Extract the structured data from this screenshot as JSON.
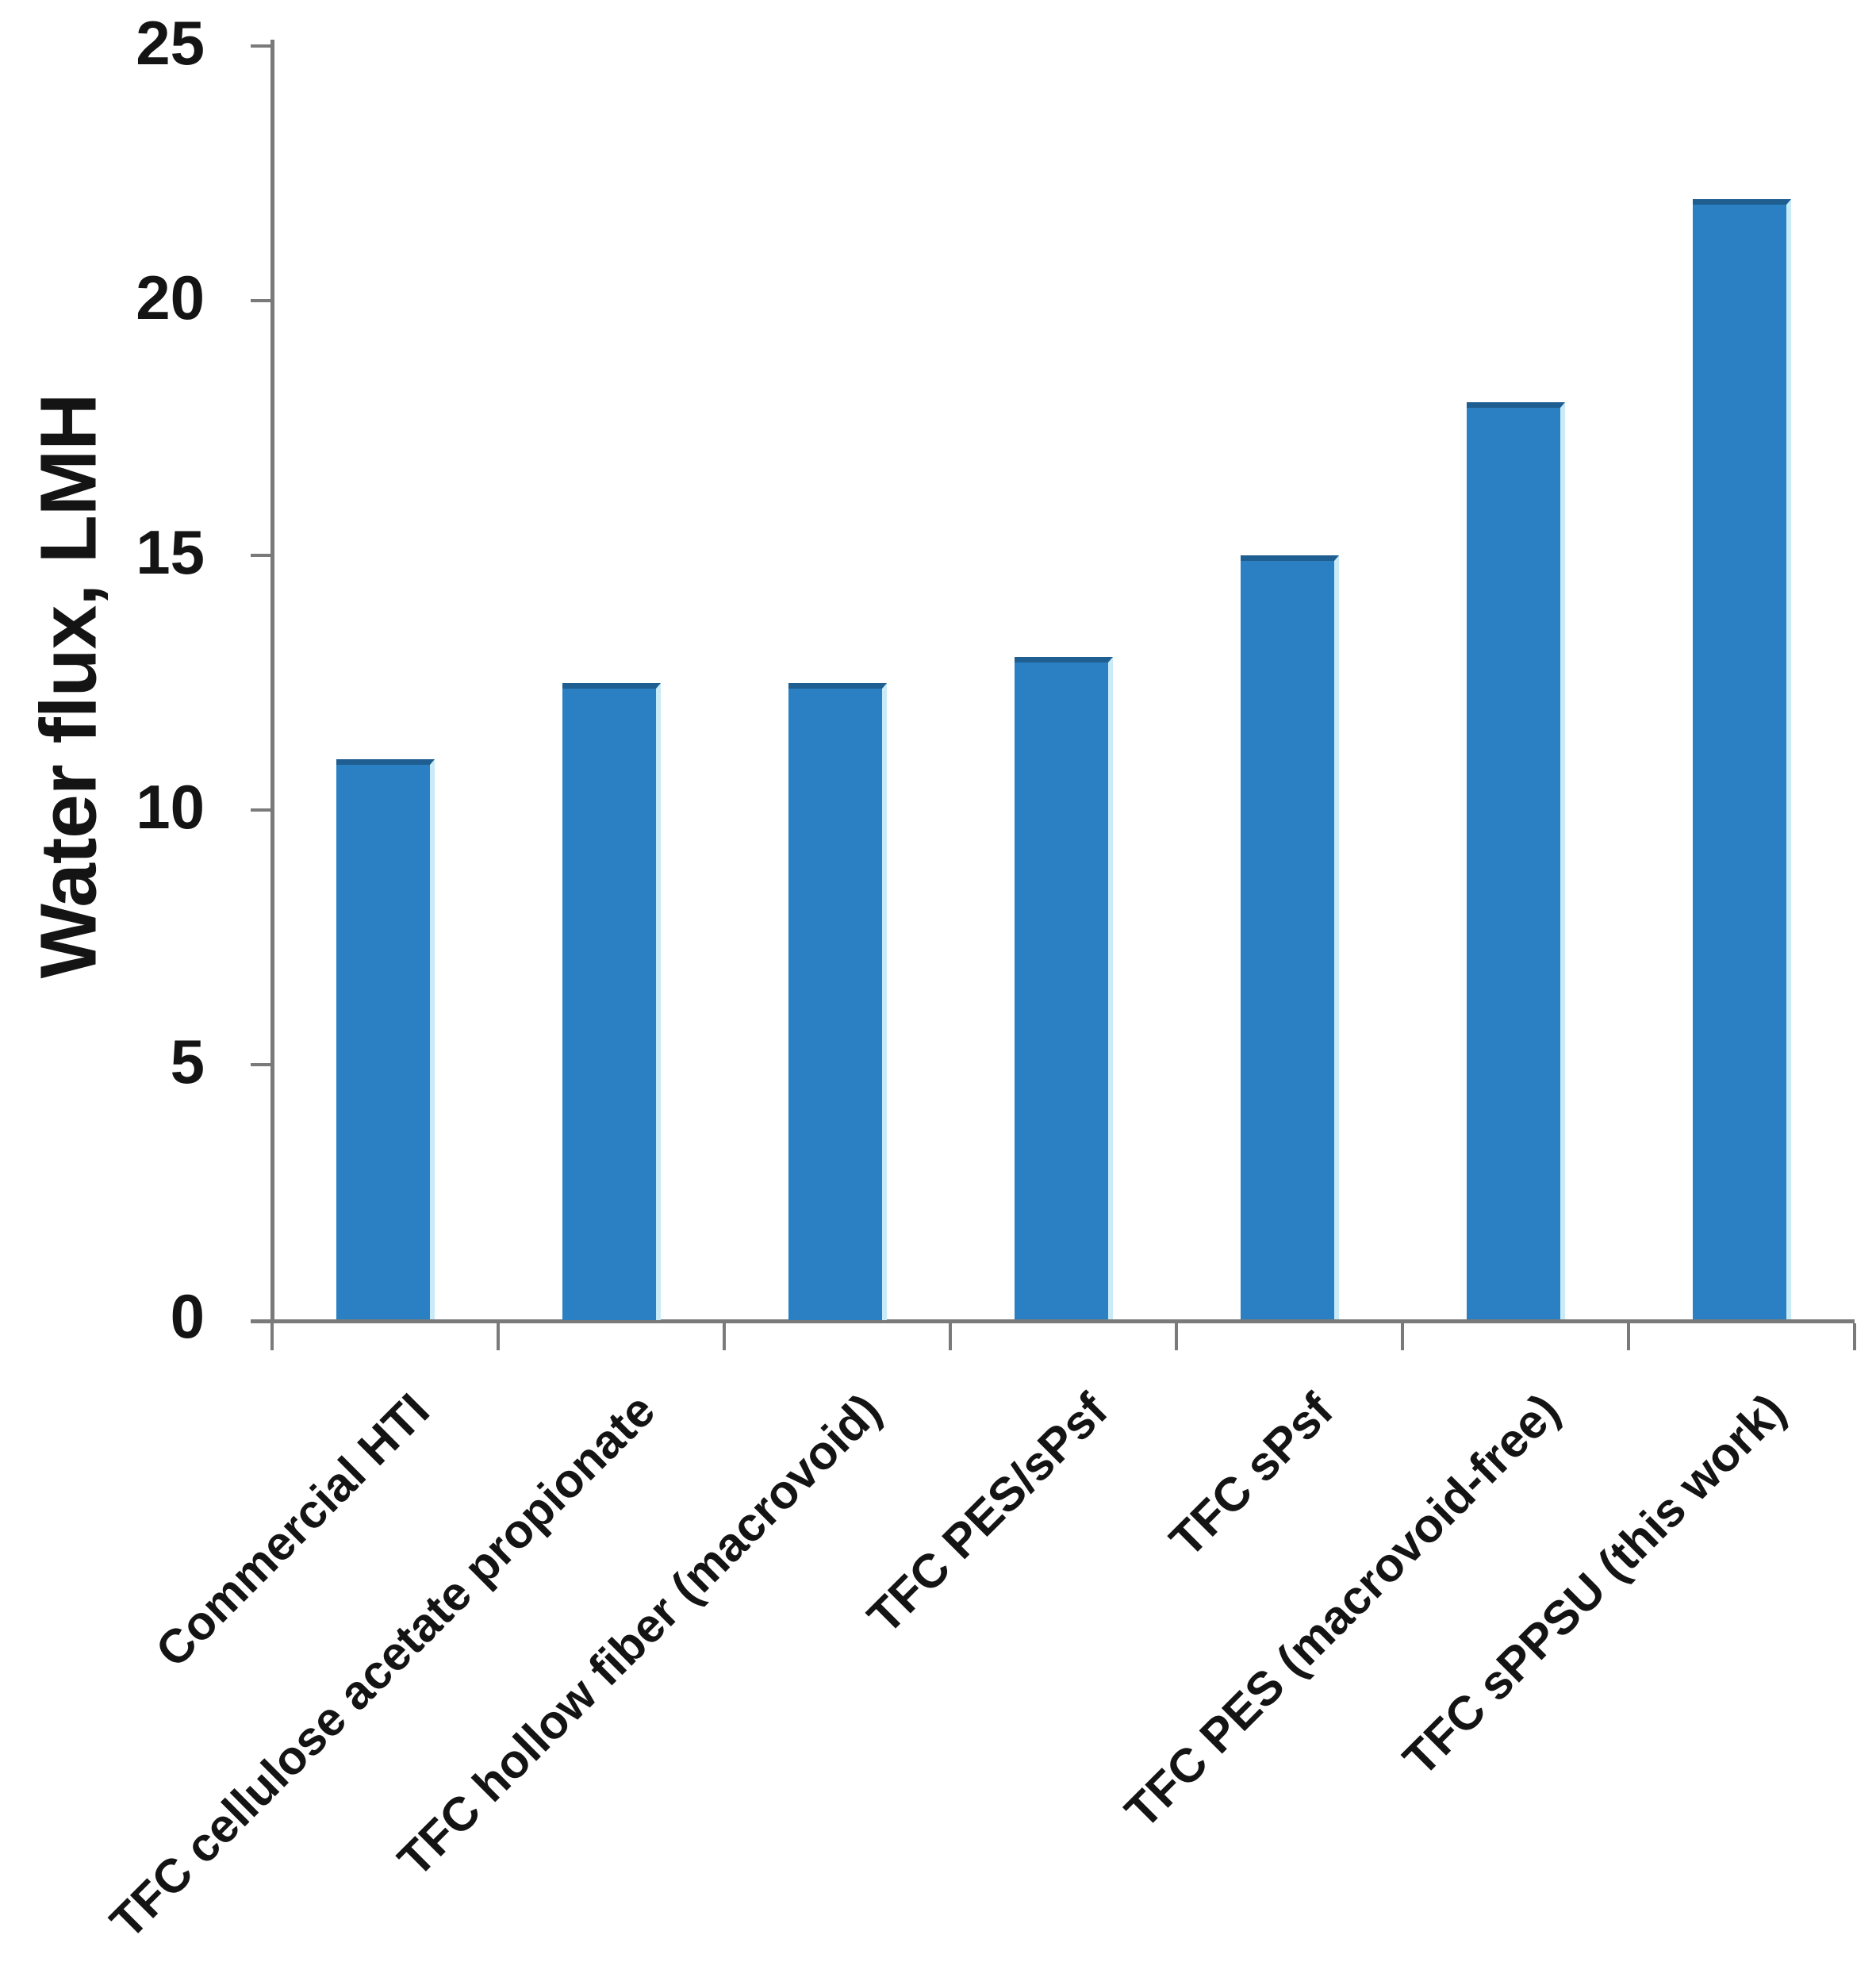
{
  "chart_data": {
    "type": "bar",
    "title": "",
    "ylabel": "Water flux, LMH",
    "xlabel": "",
    "categories": [
      "Commercial HTI",
      "TFC cellulose acetate propionate",
      "TFC hollow fiber (macrovoid)",
      "TFC PES/sPsf",
      "TFC sPsf",
      "TFC PES (macrovoid-free)",
      "TFC sPPSU (this work)"
    ],
    "values": [
      11,
      12.5,
      12.5,
      13,
      15,
      18,
      22
    ],
    "y_ticks": [
      0,
      5,
      10,
      15,
      20,
      25
    ],
    "ylim": [
      0,
      25
    ],
    "grid": "off",
    "legend": "none",
    "x_label_rotation_deg": -45,
    "bar_color": "#2A80C3",
    "bar_top_edge_color": "#1F5E90",
    "bar_right_highlight_color": "#C9EBF8",
    "axis_color": "#7A7A7A",
    "text_color": "#141414",
    "background_color": "#FFFFFF"
  }
}
